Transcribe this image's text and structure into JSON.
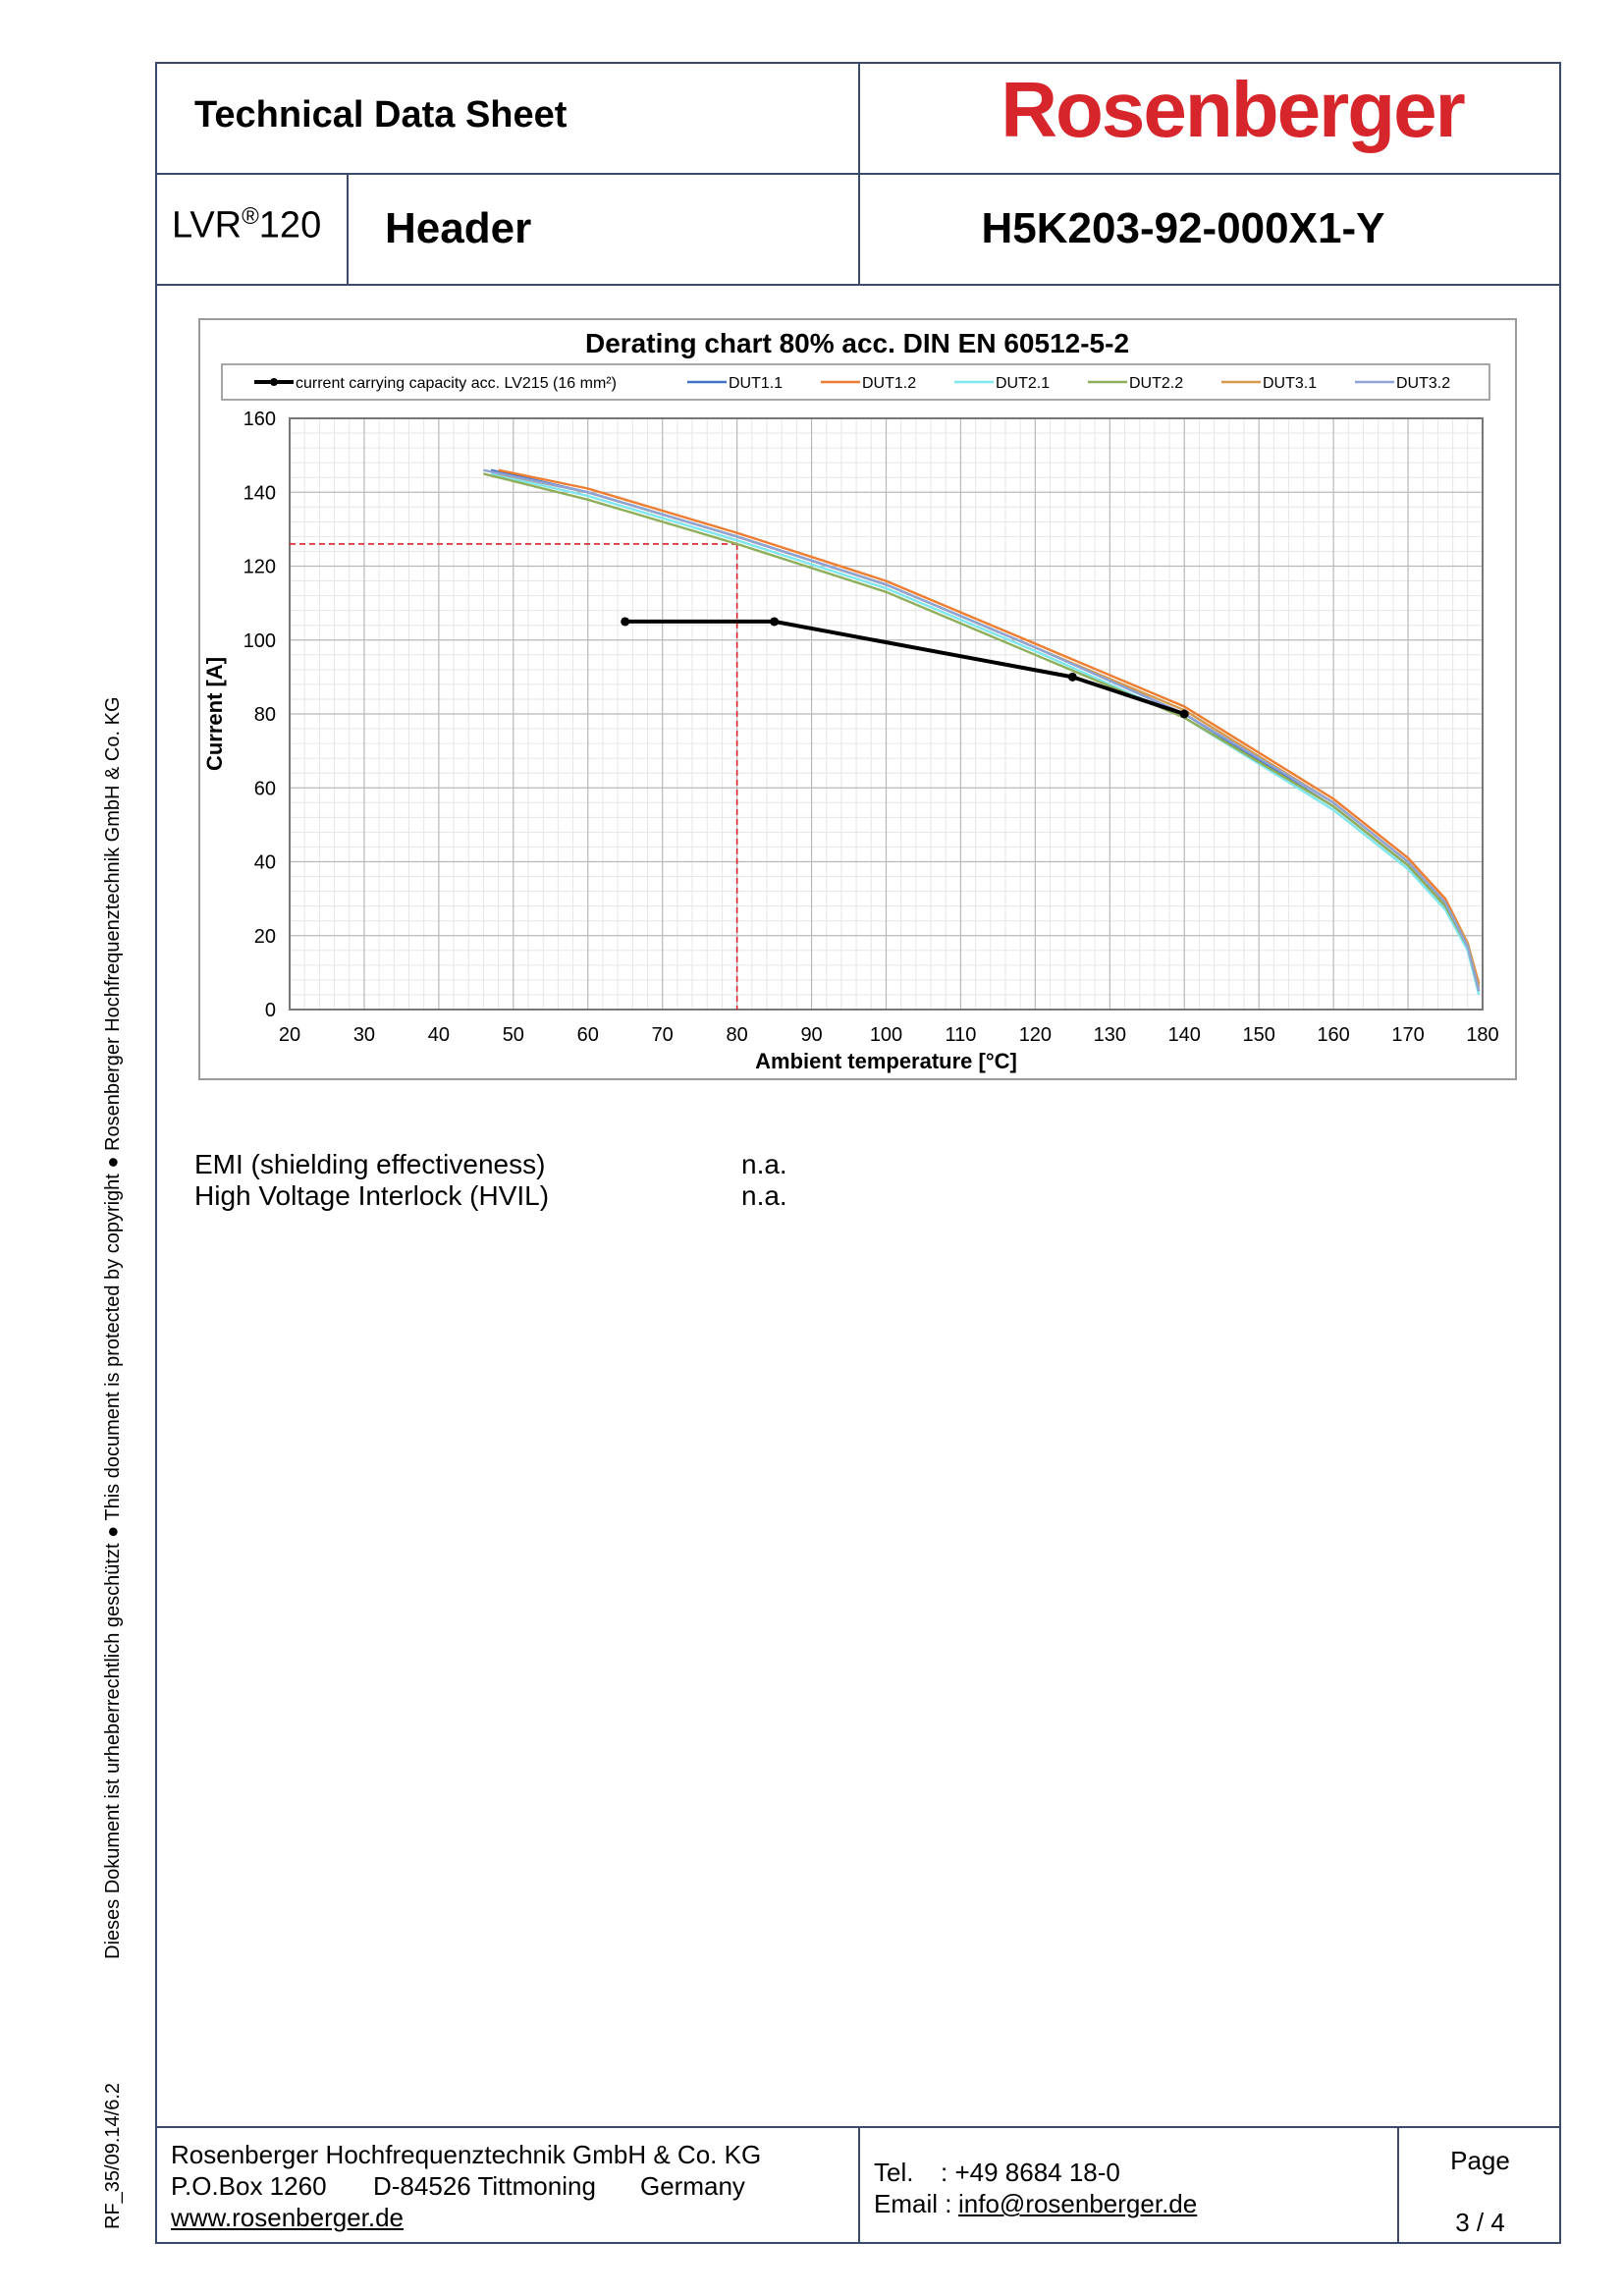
{
  "header": {
    "title": "Technical Data Sheet",
    "brand": "Rosenberger",
    "series_prefix": "LVR",
    "series_mark": "®",
    "series_suffix": "120",
    "product": "Header",
    "part_number": "H5K203-92-000X1-Y"
  },
  "side_notice": "Dieses Dokument ist urheberrechtlich geschützt ● This document is protected by copyright ● Rosenberger Hochfrequenztechnik GmbH & Co. KG",
  "side_code": "RF_35/09.14/6.2",
  "specs": [
    {
      "label": "EMI (shielding effectiveness)",
      "value": "n.a."
    },
    {
      "label": "High Voltage Interlock (HVIL)",
      "value": "n.a."
    }
  ],
  "footer": {
    "company": "Rosenberger Hochfrequenztechnik GmbH & Co. KG",
    "pobox": "P.O.Box 1260",
    "zip_city": "D-84526 Tittmoning",
    "country": "Germany",
    "website": "www.rosenberger.de",
    "tel_label": "Tel.",
    "tel_value": ": +49 8684 18-0",
    "email_label": "Email :",
    "email_value": "info@rosenberger.de",
    "page_label": "Page",
    "page_value": "3 / 4"
  },
  "chart_data": {
    "type": "line",
    "title": "Derating chart 80% acc. DIN EN 60512-5-2",
    "xlabel": "Ambient temperature  [°C]",
    "ylabel": "Current  [A]",
    "xlim": [
      20,
      180
    ],
    "ylim": [
      0,
      160
    ],
    "x_ticks": [
      20,
      30,
      40,
      50,
      60,
      70,
      80,
      90,
      100,
      110,
      120,
      130,
      140,
      150,
      160,
      170,
      180
    ],
    "y_ticks": [
      0,
      20,
      40,
      60,
      80,
      100,
      120,
      140,
      160
    ],
    "grid": true,
    "legend_position": "top",
    "reference_point": {
      "x": 80,
      "y": 126,
      "color": "#d9232a"
    },
    "series": [
      {
        "name": "current carrying capacity acc. LV215 (16 mm²)",
        "color": "#000000",
        "markers": true,
        "points": [
          [
            65,
            105
          ],
          [
            85,
            105
          ],
          [
            125,
            90
          ],
          [
            140,
            80
          ]
        ]
      },
      {
        "name": "DUT1.1",
        "color": "#4472c4",
        "points": [
          [
            47,
            146
          ],
          [
            60,
            140
          ],
          [
            80,
            128
          ],
          [
            100,
            115
          ],
          [
            120,
            98
          ],
          [
            140,
            80
          ],
          [
            160,
            55
          ],
          [
            170,
            39
          ],
          [
            175,
            28
          ],
          [
            178,
            17
          ],
          [
            179.5,
            5
          ]
        ]
      },
      {
        "name": "DUT1.2",
        "color": "#ed7d31",
        "points": [
          [
            48,
            146
          ],
          [
            60,
            141
          ],
          [
            80,
            129
          ],
          [
            100,
            116
          ],
          [
            120,
            99
          ],
          [
            140,
            82
          ],
          [
            160,
            57
          ],
          [
            170,
            41
          ],
          [
            175,
            30
          ],
          [
            178,
            18
          ],
          [
            179.5,
            7
          ]
        ]
      },
      {
        "name": "DUT2.1",
        "color": "#7fe6ee",
        "points": [
          [
            47,
            145
          ],
          [
            60,
            139
          ],
          [
            80,
            127
          ],
          [
            100,
            114
          ],
          [
            120,
            97
          ],
          [
            140,
            79
          ],
          [
            160,
            54
          ],
          [
            170,
            38
          ],
          [
            175,
            27
          ],
          [
            178,
            16
          ],
          [
            179.5,
            4
          ]
        ]
      },
      {
        "name": "DUT2.2",
        "color": "#8fae5a",
        "points": [
          [
            46,
            145
          ],
          [
            60,
            138
          ],
          [
            80,
            126
          ],
          [
            100,
            113
          ],
          [
            120,
            96
          ],
          [
            140,
            79
          ],
          [
            160,
            55
          ],
          [
            170,
            39
          ],
          [
            175,
            28
          ],
          [
            178,
            17
          ],
          [
            179.5,
            5
          ]
        ]
      },
      {
        "name": "DUT3.1",
        "color": "#d59a4e",
        "points": [
          [
            48,
            145
          ],
          [
            60,
            140
          ],
          [
            80,
            128
          ],
          [
            100,
            115
          ],
          [
            120,
            98
          ],
          [
            140,
            81
          ],
          [
            160,
            56
          ],
          [
            170,
            40
          ],
          [
            175,
            29
          ],
          [
            178,
            18
          ],
          [
            179.5,
            6
          ]
        ]
      },
      {
        "name": "DUT3.2",
        "color": "#8fa3d4",
        "points": [
          [
            46,
            146
          ],
          [
            60,
            140
          ],
          [
            80,
            128
          ],
          [
            100,
            115
          ],
          [
            120,
            98
          ],
          [
            140,
            80
          ],
          [
            160,
            56
          ],
          [
            170,
            40
          ],
          [
            175,
            29
          ],
          [
            178,
            17
          ],
          [
            179.5,
            5
          ]
        ]
      }
    ]
  }
}
